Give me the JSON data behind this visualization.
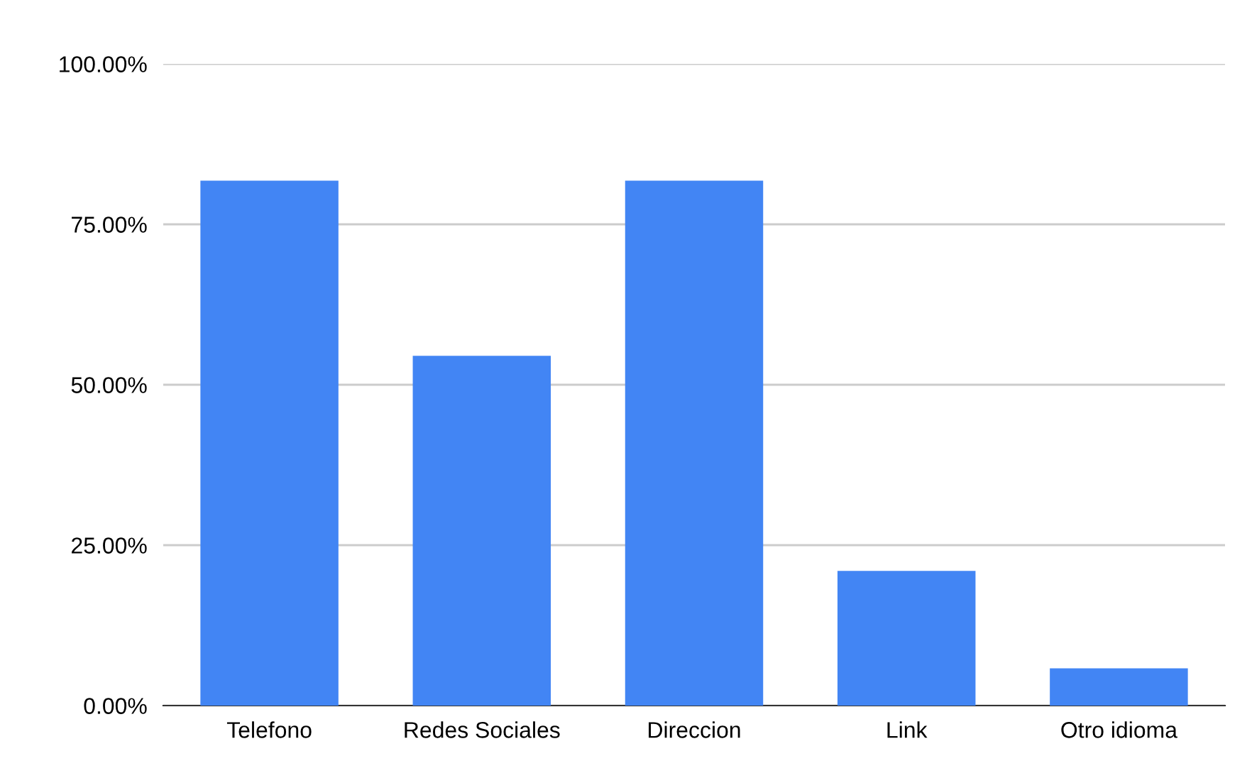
{
  "chart_data": {
    "type": "bar",
    "categories": [
      "Telefono",
      "Redes Sociales",
      "Direccion",
      "Link",
      "Otro idioma"
    ],
    "values": [
      81.8,
      54.5,
      81.8,
      21.0,
      5.8
    ],
    "color": "#4285f4",
    "ylim": [
      0,
      100
    ],
    "yticks": [
      {
        "value": 0,
        "label": "0.00%"
      },
      {
        "value": 25,
        "label": "25.00%"
      },
      {
        "value": 50,
        "label": "50.00%"
      },
      {
        "value": 75,
        "label": "75.00%"
      },
      {
        "value": 100,
        "label": "100.00%"
      }
    ],
    "grid": "y",
    "legend": false
  }
}
